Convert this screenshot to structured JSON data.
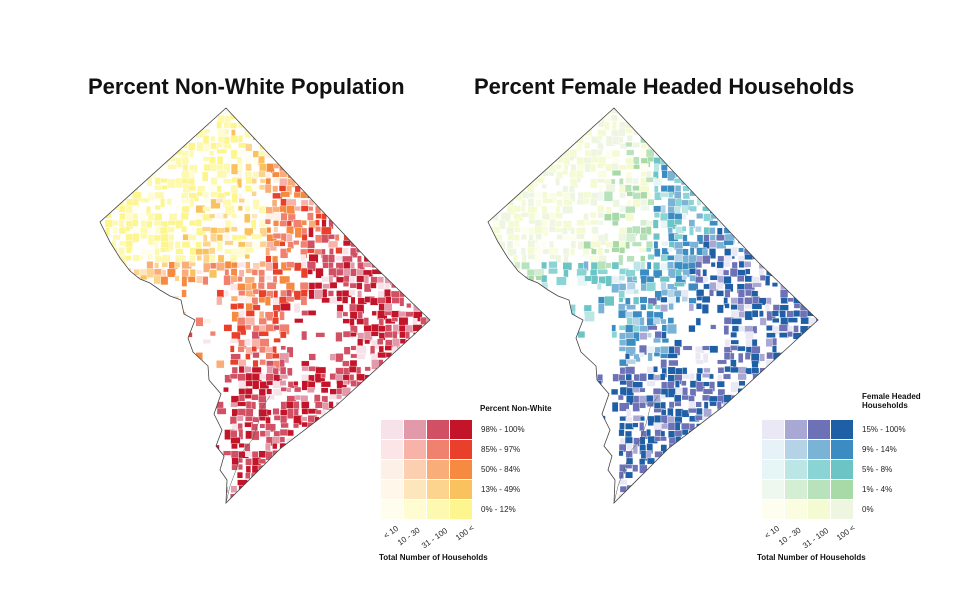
{
  "maps": [
    {
      "title": "Percent Non-White Population",
      "legend": {
        "title": "Percent Non-White",
        "classes": [
          "98% - 100%",
          "85% - 97%",
          "50% - 84%",
          "13% - 49%",
          "0% - 12%"
        ],
        "households": [
          "< 10",
          "10 - 30",
          "31 - 100",
          "100 <"
        ],
        "xlabel": "Total Number of Households",
        "colors": [
          [
            "#f7e2ea",
            "#e299a9",
            "#d15064",
            "#c4142a"
          ],
          [
            "#fbe5e6",
            "#f7b3a8",
            "#f0816e",
            "#e8402a"
          ],
          [
            "#fdf0e6",
            "#fccfb0",
            "#f9ae7a",
            "#f58a40"
          ],
          [
            "#fef7ea",
            "#fde5bc",
            "#fcd48e",
            "#fac25e"
          ],
          [
            "#fffeee",
            "#fefcd0",
            "#fef9b0",
            "#fdf68e"
          ]
        ]
      }
    },
    {
      "title": "Percent Female Headed Households",
      "legend": {
        "title": "Female Headed Households",
        "classes": [
          "15% - 100%",
          "9% - 14%",
          "5% - 8%",
          "1% - 4%",
          "0%"
        ],
        "households": [
          "< 10",
          "10 - 30",
          "31 - 100",
          "100 <"
        ],
        "xlabel": "Total Number of Households",
        "colors": [
          [
            "#eae8f4",
            "#a9a8d4",
            "#6d72b6",
            "#1f5fa6"
          ],
          [
            "#e6f1f8",
            "#b4d3e7",
            "#7bb3d6",
            "#3a8cc2"
          ],
          [
            "#e6f6f6",
            "#bce6e6",
            "#8bd4d6",
            "#6cc4c4"
          ],
          [
            "#eef8ee",
            "#d4eed4",
            "#b8e2bc",
            "#a8daa8"
          ],
          [
            "#fdfef0",
            "#fafde0",
            "#f4fbd2",
            "#eef6e2"
          ]
        ]
      }
    }
  ]
}
